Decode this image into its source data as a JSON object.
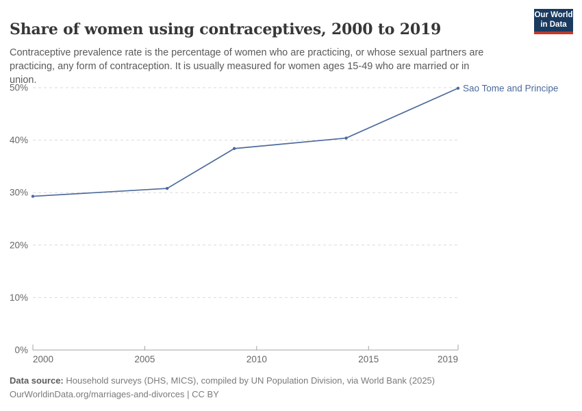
{
  "header": {
    "title": "Share of women using contraceptives, 2000 to 2019",
    "subtitle": "Contraceptive prevalence rate is the percentage of women who are practicing, or whose sexual partners are practicing, any form of contraception. It is usually measured for women ages 15-49 who are married or in union.",
    "logo": {
      "line1": "Our World",
      "line2": "in Data"
    }
  },
  "chart_data": {
    "type": "line",
    "title": "Share of women using contraceptives, 2000 to 2019",
    "xlabel": "",
    "ylabel": "",
    "xlim": [
      2000,
      2019
    ],
    "ylim": [
      0,
      50
    ],
    "x_ticks": [
      2000,
      2005,
      2010,
      2015,
      2019
    ],
    "y_ticks": [
      0,
      10,
      20,
      30,
      40,
      50
    ],
    "y_tick_suffix": "%",
    "grid": "horizontal-dashed",
    "legend_position": "end-of-line-label",
    "series": [
      {
        "name": "Sao Tome and Principe",
        "color": "#4c6a9c",
        "points": [
          {
            "x": 2000,
            "y": 29.3
          },
          {
            "x": 2006,
            "y": 30.8
          },
          {
            "x": 2009,
            "y": 38.4
          },
          {
            "x": 2014,
            "y": 40.4
          },
          {
            "x": 2019,
            "y": 49.9
          }
        ]
      }
    ]
  },
  "footer": {
    "source_label": "Data source:",
    "source_text": " Household surveys (DHS, MICS), compiled by UN Population Division, via World Bank (2025)",
    "note_text": "OurWorldinData.org/marriages-and-divorces | CC BY"
  },
  "colors": {
    "series_blue": "#4c6a9c",
    "logo_navy": "#1a3a5f",
    "logo_red": "#c0392b",
    "gridline": "#dadada",
    "axis": "#a3a3a3",
    "tick_text": "#666666"
  }
}
